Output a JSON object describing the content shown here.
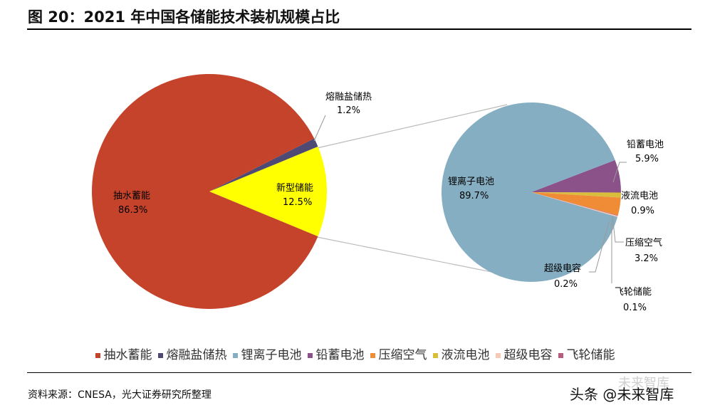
{
  "title": "图 20：2021 年中国各储能技术装机规模占比",
  "source": "资料来源：CNESA，光大证券研究所整理",
  "watermark": "头条 @未来智库",
  "chart_data": [
    {
      "type": "pie",
      "title": "",
      "slices": [
        {
          "name": "抽水蓄能",
          "value": 86.3,
          "label": "86.3%",
          "color": "#C5432A"
        },
        {
          "name": "熔融盐储热",
          "value": 1.2,
          "label": "1.2%",
          "color": "#4F4A74"
        },
        {
          "name": "新型储能",
          "value": 12.5,
          "label": "12.5%",
          "color": "#FFFF00"
        }
      ]
    },
    {
      "type": "pie",
      "title": "",
      "breakdown_of": "新型储能",
      "slices": [
        {
          "name": "锂离子电池",
          "value": 89.7,
          "label": "89.7%",
          "color": "#86AEC2"
        },
        {
          "name": "铅蓄电池",
          "value": 5.9,
          "label": "5.9%",
          "color": "#8A5289"
        },
        {
          "name": "压缩空气",
          "value": 3.2,
          "label": "3.2%",
          "color": "#F08C35"
        },
        {
          "name": "液流电池",
          "value": 0.9,
          "label": "0.9%",
          "color": "#D9BE3C"
        },
        {
          "name": "飞轮储能",
          "value": 0.1,
          "label": "0.1%",
          "color": "#B75C7C"
        },
        {
          "name": "超级电容",
          "value": 0.2,
          "label": "0.2%",
          "color": "#F6C9B5"
        }
      ]
    }
  ],
  "legend": [
    {
      "name": "抽水蓄能",
      "color": "#C5432A"
    },
    {
      "name": "熔融盐储热",
      "color": "#4F4A74"
    },
    {
      "name": "锂离子电池",
      "color": "#86AEC2"
    },
    {
      "name": "铅蓄电池",
      "color": "#8A5289"
    },
    {
      "name": "压缩空气",
      "color": "#F08C35"
    },
    {
      "name": "液流电池",
      "color": "#D9BE3C"
    },
    {
      "name": "超级电容",
      "color": "#F6C9B5"
    },
    {
      "name": "飞轮储能",
      "color": "#B75C7C"
    }
  ]
}
